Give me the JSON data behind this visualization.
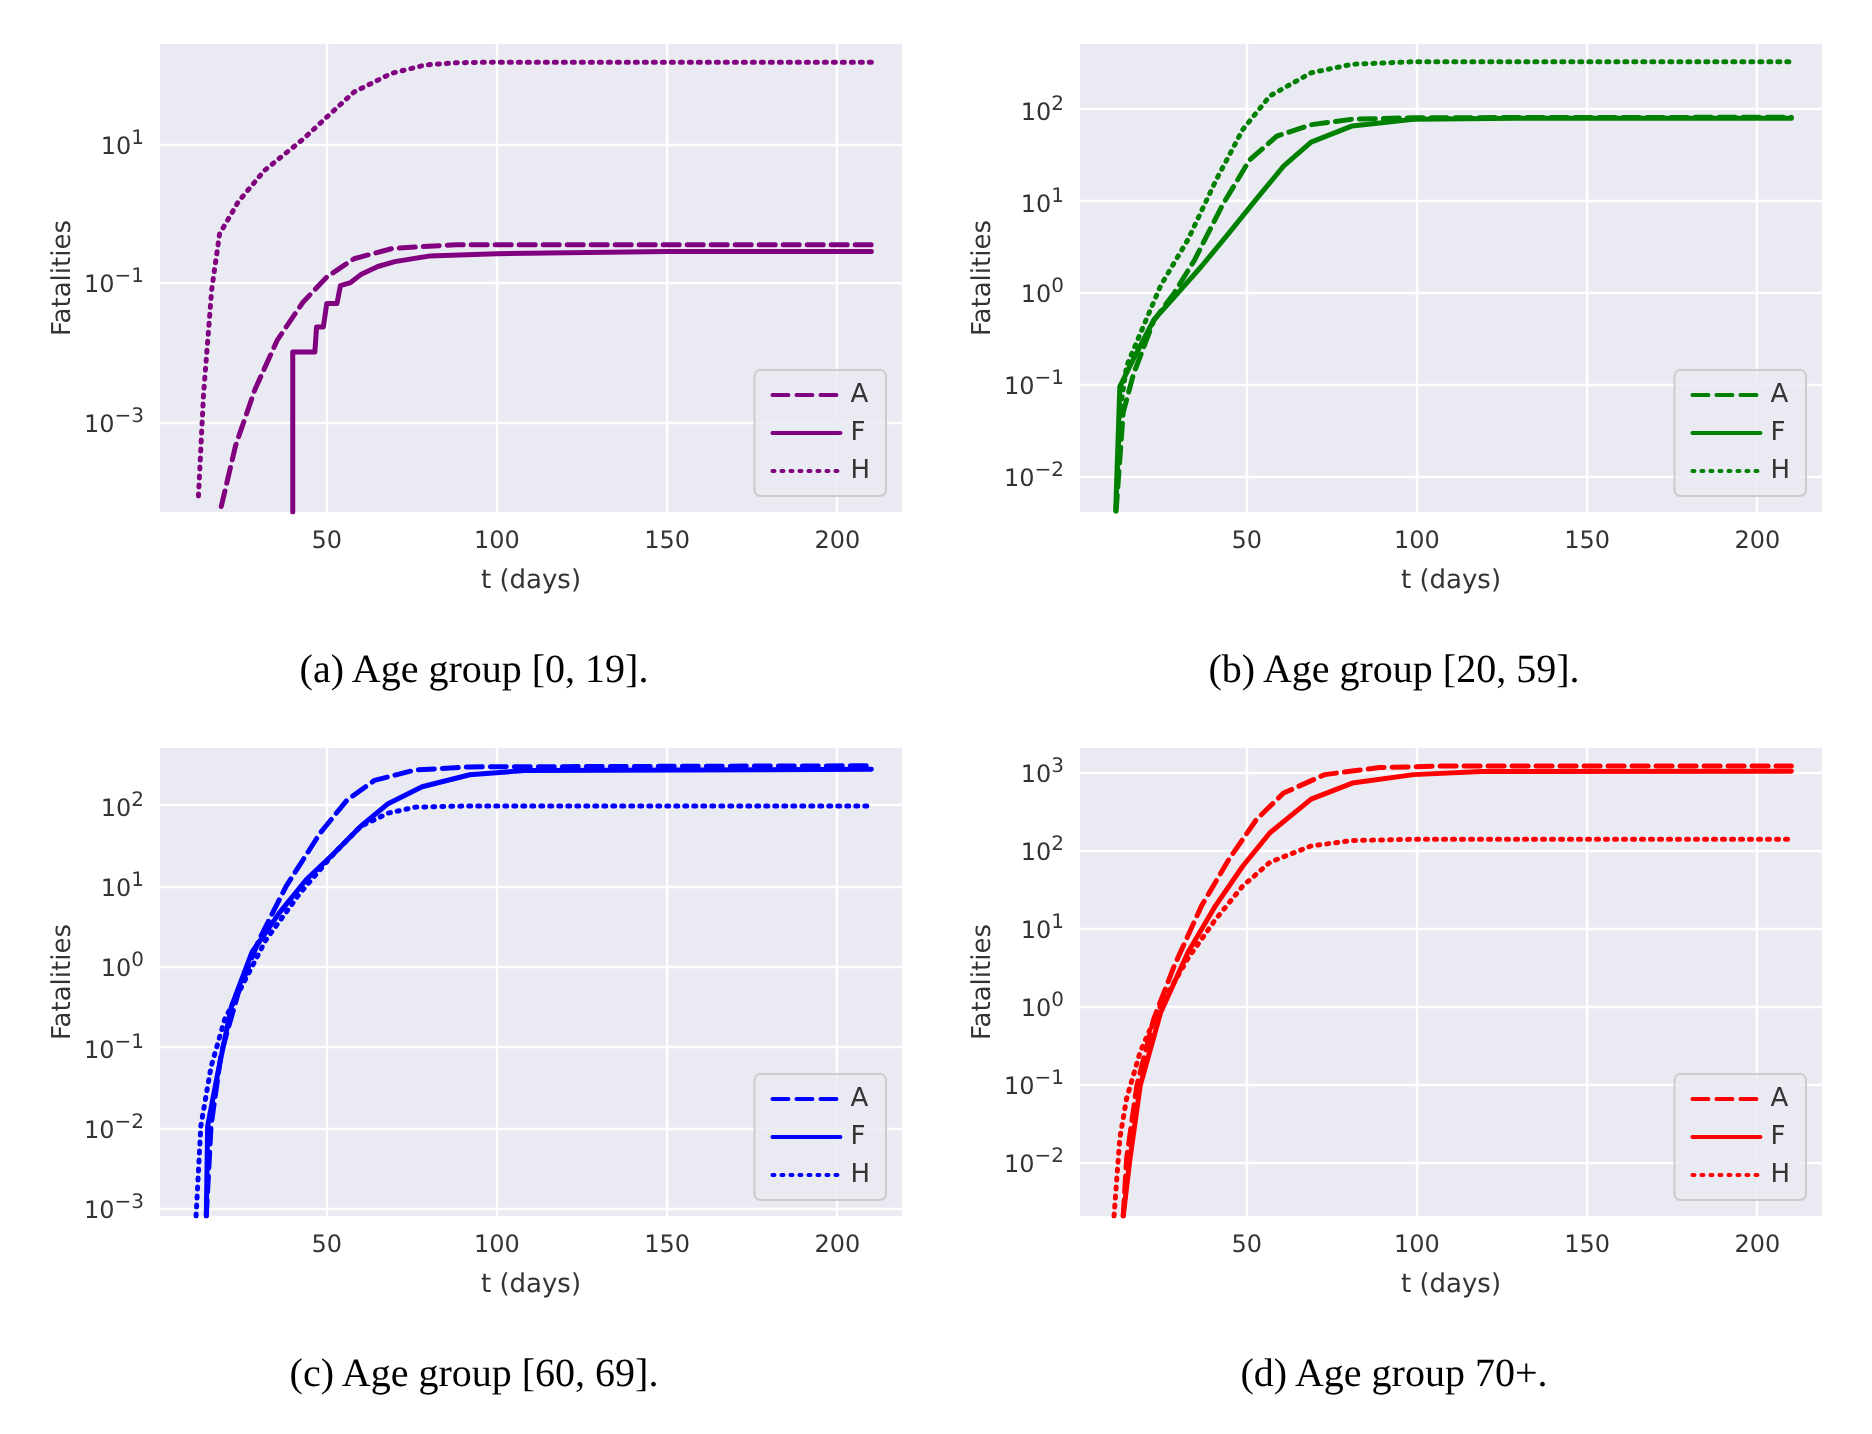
{
  "chart_data": [
    {
      "type": "line",
      "title": "(a) Age group [0, 19].",
      "xlabel": "t (days)",
      "ylabel": "Fatalities",
      "log": "y",
      "grid": true,
      "legend": "bottom right",
      "xlim": [
        1,
        219
      ],
      "xticks": [
        50,
        100,
        150,
        200
      ],
      "ylim": [
        5e-05,
        270
      ],
      "yticks": [
        {
          "value": 0.001,
          "label": "10$^{−3}$"
        },
        {
          "value": 0.1,
          "label": "10$^{−1}$"
        },
        {
          "value": 10,
          "label": "10$^{1}$"
        }
      ],
      "series": [
        {
          "name": "A",
          "color": "#800080",
          "line_style": "dashed",
          "x": [
            19,
            23.2,
            28.9,
            35.5,
            43,
            50,
            58,
            69.4,
            88,
            100,
            210
          ],
          "values": [
            6e-05,
            0.00045,
            0.0029,
            0.015,
            0.052,
            0.12,
            0.22,
            0.31,
            0.35,
            0.35,
            0.35
          ]
        },
        {
          "name": "F",
          "color": "#800080",
          "line_style": "solid",
          "x": [
            40,
            40,
            46.5,
            47,
            49,
            50,
            53,
            54,
            57,
            60,
            65,
            70,
            80,
            100,
            150,
            210
          ],
          "values": [
            5e-05,
            0.01,
            0.01,
            0.023,
            0.023,
            0.05,
            0.05,
            0.09,
            0.1,
            0.13,
            0.17,
            0.2,
            0.24,
            0.26,
            0.28,
            0.28
          ]
        },
        {
          "name": "H",
          "color": "#800080",
          "line_style": "dotted",
          "x": [
            12.3,
            13.8,
            16.2,
            18.5,
            24,
            31.7,
            43,
            50,
            58,
            69,
            79,
            88,
            100,
            210
          ],
          "values": [
            8.5e-05,
            0.0025,
            0.08,
            0.5,
            1.45,
            4.1,
            11.5,
            24,
            55,
            102,
            135,
            145,
            148,
            148
          ]
        }
      ]
    },
    {
      "type": "line",
      "title": "(b) Age group [20, 59].",
      "xlabel": "t (days)",
      "ylabel": "Fatalities",
      "log": "y",
      "grid": true,
      "legend": "bottom right",
      "xlim": [
        1,
        219
      ],
      "xticks": [
        50,
        100,
        150,
        200
      ],
      "ylim": [
        0.0041,
        515
      ],
      "yticks": [
        {
          "value": 0.01,
          "label": "10$^{−2}$"
        },
        {
          "value": 0.1,
          "label": "10$^{−1}$"
        },
        {
          "value": 1,
          "label": "10$^{0}$"
        },
        {
          "value": 10,
          "label": "10$^{1}$"
        },
        {
          "value": 100,
          "label": "10$^{2}$"
        }
      ],
      "series": [
        {
          "name": "A",
          "color": "#008000",
          "line_style": "dashed",
          "x": [
            11.6,
            13.7,
            16.7,
            22.7,
            28.7,
            34.7,
            42.8,
            50.8,
            58.8,
            68.9,
            81,
            99,
            210
          ],
          "values": [
            0.0042,
            0.05,
            0.13,
            0.5,
            1.0,
            2.3,
            9,
            28,
            51,
            68,
            78,
            81,
            82
          ]
        },
        {
          "name": "F",
          "color": "#008000",
          "line_style": "solid",
          "x": [
            11.5,
            12.7,
            16.7,
            22.7,
            28.7,
            36.7,
            44.8,
            52.8,
            60.8,
            68.9,
            81,
            99,
            129,
            210
          ],
          "values": [
            0.0042,
            0.095,
            0.19,
            0.51,
            0.9,
            1.95,
            4.5,
            10.5,
            24,
            44,
            66,
            78,
            80,
            80
          ]
        },
        {
          "name": "H",
          "color": "#008000",
          "line_style": "dotted",
          "x": [
            11.6,
            12.7,
            14.7,
            18.7,
            24.7,
            32.7,
            41,
            48.8,
            56.8,
            68.9,
            81,
            99,
            210
          ],
          "values": [
            0.0047,
            0.05,
            0.16,
            0.36,
            1.2,
            3.8,
            17,
            60,
            140,
            250,
            310,
            330,
            330
          ]
        }
      ]
    },
    {
      "type": "line",
      "title": "(c) Age group [60, 69].",
      "xlabel": "t (days)",
      "ylabel": "Fatalities",
      "log": "y",
      "grid": true,
      "legend": "bottom right",
      "xlim": [
        1,
        219
      ],
      "xticks": [
        50,
        100,
        150,
        200
      ],
      "ylim": [
        0.0008,
        515
      ],
      "yticks": [
        {
          "value": 0.001,
          "label": "10$^{−3}$"
        },
        {
          "value": 0.01,
          "label": "10$^{−2}$"
        },
        {
          "value": 0.1,
          "label": "10$^{−1}$"
        },
        {
          "value": 1,
          "label": "10$^{0}$"
        },
        {
          "value": 10,
          "label": "10$^{1}$"
        },
        {
          "value": 100,
          "label": "10$^{2}$"
        }
      ],
      "series": [
        {
          "name": "A",
          "color": "#0000ff",
          "line_style": "dashed",
          "x": [
            14.6,
            16,
            19,
            24,
            30,
            38,
            48,
            56,
            64,
            76,
            92,
            210
          ],
          "values": [
            0.0008,
            0.0105,
            0.085,
            0.47,
            2.1,
            9.8,
            45,
            117,
            204,
            275,
            300,
            310
          ]
        },
        {
          "name": "F",
          "color": "#0000ff",
          "line_style": "solid",
          "x": [
            14.6,
            15,
            18,
            22,
            28,
            36,
            44,
            52,
            60,
            68,
            78,
            92,
            108,
            210
          ],
          "values": [
            0.0008,
            0.0105,
            0.048,
            0.32,
            1.5,
            4.6,
            12,
            25,
            55,
            105,
            170,
            240,
            270,
            280
          ]
        },
        {
          "name": "H",
          "color": "#0000ff",
          "line_style": "dotted",
          "x": [
            11.6,
            13,
            16,
            20,
            26,
            32,
            42,
            52,
            60,
            68,
            76,
            90,
            210
          ],
          "values": [
            0.0008,
            0.0105,
            0.057,
            0.22,
            0.68,
            2.1,
            8,
            25,
            55,
            80,
            95,
            98,
            98
          ]
        }
      ]
    },
    {
      "type": "line",
      "title": "(d) Age group 70+.",
      "xlabel": "t (days)",
      "ylabel": "Fatalities",
      "log": "y",
      "grid": true,
      "legend": "bottom right",
      "xlim": [
        1,
        219
      ],
      "xticks": [
        50,
        100,
        150,
        200
      ],
      "ylim": [
        0.002,
        2090
      ],
      "yticks": [
        {
          "value": 0.01,
          "label": "10$^{−2}$"
        },
        {
          "value": 0.1,
          "label": "10$^{−1}$"
        },
        {
          "value": 1,
          "label": "10$^{0}$"
        },
        {
          "value": 10,
          "label": "10$^{1}$"
        },
        {
          "value": 100,
          "label": "10$^{2}$"
        },
        {
          "value": 1000,
          "label": "10$^{3}$"
        }
      ],
      "series": [
        {
          "name": "A",
          "color": "#ff0000",
          "line_style": "dashed",
          "x": [
            13.7,
            14.7,
            17.7,
            22.7,
            28.7,
            36.7,
            44.8,
            52.8,
            60.8,
            72.9,
            89,
            109,
            210
          ],
          "values": [
            0.002,
            0.011,
            0.095,
            0.69,
            3.3,
            19.5,
            78,
            250,
            550,
            950,
            1170,
            1230,
            1230
          ]
        },
        {
          "name": "F",
          "color": "#ff0000",
          "line_style": "solid",
          "x": [
            13.7,
            15.7,
            18.7,
            24.7,
            32.7,
            40.8,
            48.8,
            56.8,
            68.9,
            81,
            99,
            119,
            210
          ],
          "values": [
            0.002,
            0.011,
            0.095,
            0.83,
            4.9,
            19.5,
            63,
            170,
            460,
            740,
            950,
            1040,
            1050
          ]
        },
        {
          "name": "H",
          "color": "#ff0000",
          "line_style": "dotted",
          "x": [
            11,
            12.7,
            14.7,
            18.7,
            24.7,
            32.7,
            40.8,
            48.8,
            56.8,
            68.9,
            81,
            99,
            210
          ],
          "values": [
            0.002,
            0.02,
            0.065,
            0.26,
            1.02,
            4.1,
            13,
            35,
            71,
            115,
            135,
            140,
            140
          ]
        }
      ]
    }
  ]
}
